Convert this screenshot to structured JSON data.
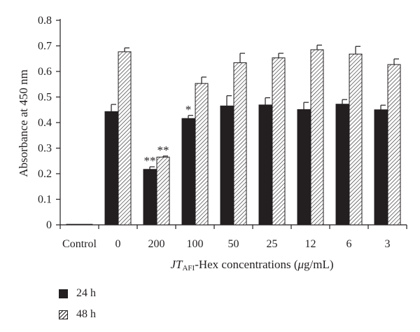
{
  "chart_data": {
    "type": "bar",
    "ylabel": "Absorbance at 450 nm",
    "xlabel_parts": {
      "italic": "JT",
      "subscript": "AFI",
      "rest": "-Hex concentrations (",
      "mu": "μ",
      "unit": "g/mL)"
    },
    "ylim": [
      0,
      0.8
    ],
    "yticks": [
      "0",
      "0.1",
      "0.2",
      "0.3",
      "0.4",
      "0.5",
      "0.6",
      "0.7",
      "0.8"
    ],
    "categories": [
      "Control",
      "0",
      "200",
      "100",
      "50",
      "25",
      "12",
      "6",
      "3"
    ],
    "series": [
      {
        "name": "24 h",
        "pattern": "solid",
        "values": [
          0.002,
          0.443,
          0.217,
          0.416,
          0.465,
          0.469,
          0.451,
          0.472,
          0.45
        ],
        "errors": [
          0,
          0.028,
          0.01,
          0.012,
          0.04,
          0.028,
          0.028,
          0.018,
          0.018
        ]
      },
      {
        "name": "48 h",
        "pattern": "hatched",
        "values": [
          0.001,
          0.677,
          0.265,
          0.553,
          0.634,
          0.653,
          0.685,
          0.668,
          0.627
        ],
        "errors": [
          0,
          0.015,
          0.004,
          0.025,
          0.037,
          0.018,
          0.018,
          0.03,
          0.022
        ]
      }
    ],
    "significance": [
      {
        "category": "200",
        "series": "24 h",
        "label": "**"
      },
      {
        "category": "200",
        "series": "48 h",
        "label": "**"
      },
      {
        "category": "100",
        "series": "24 h",
        "label": "*"
      }
    ],
    "legend_position": "bottom-left",
    "grid": false,
    "colors": {
      "ink": "#231f20",
      "background": "#ffffff"
    }
  }
}
